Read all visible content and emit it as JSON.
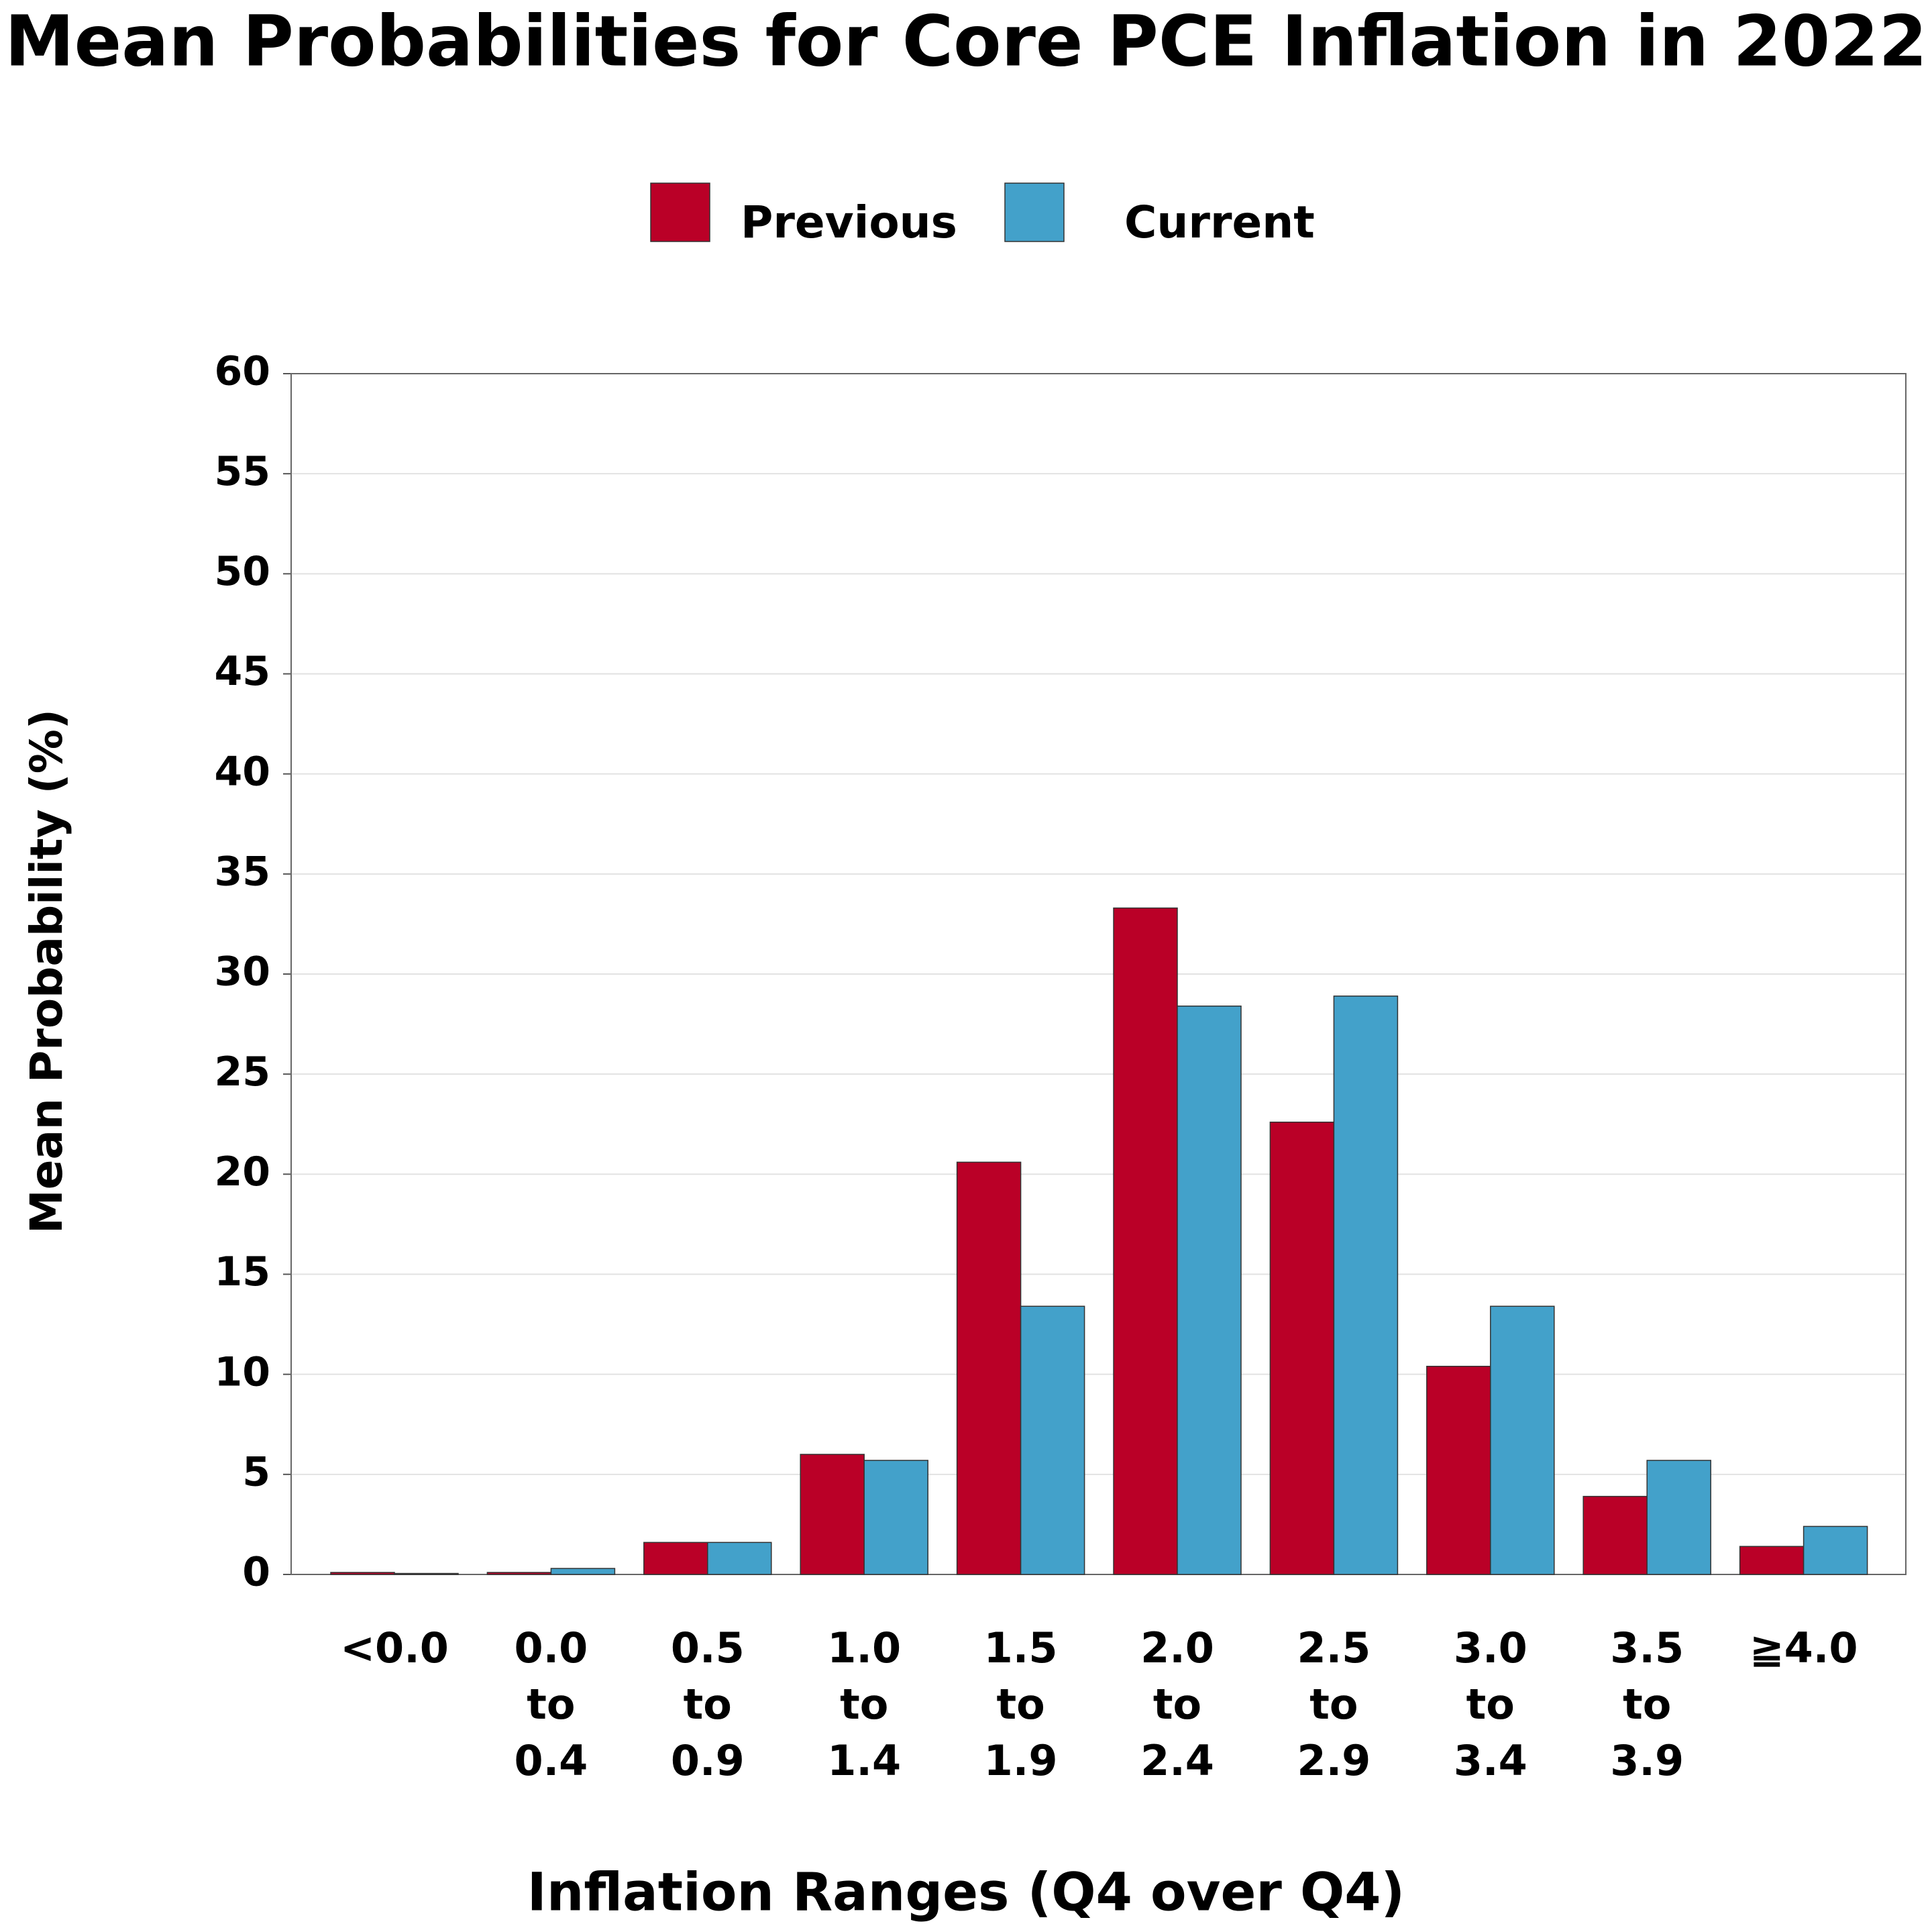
{
  "chart_data": {
    "type": "bar",
    "title": "Mean Probabilities for Core PCE Inflation in 2022",
    "x_label": "Inflation Ranges (Q4 over Q4)",
    "y_label": "Mean Probability (%)",
    "categories": [
      "<0.0",
      "0.0 to 0.4",
      "0.5 to 0.9",
      "1.0 to 1.4",
      "1.5 to 1.9",
      "2.0 to 2.4",
      "2.5 to 2.9",
      "3.0 to 3.4",
      "3.5 to 3.9",
      "≧4.0"
    ],
    "series": [
      {
        "name": "Previous",
        "color": "#ba0027",
        "values": [
          0.1,
          0.1,
          1.6,
          6.0,
          20.6,
          33.3,
          22.6,
          10.4,
          3.9,
          1.4
        ]
      },
      {
        "name": "Current",
        "color": "#43a1ca",
        "values": [
          0.05,
          0.3,
          1.6,
          5.7,
          13.4,
          28.4,
          28.9,
          13.4,
          5.7,
          2.4
        ]
      }
    ],
    "ylim": [
      0,
      60
    ],
    "yticks": [
      0,
      5,
      10,
      15,
      20,
      25,
      30,
      35,
      40,
      45,
      50,
      55,
      60
    ],
    "grid": true
  }
}
